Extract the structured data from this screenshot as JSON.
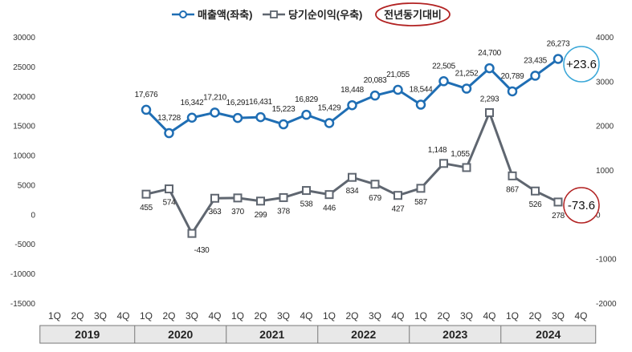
{
  "chart_data": {
    "type": "line",
    "categories": [
      "1Q",
      "2Q",
      "3Q",
      "4Q",
      "1Q",
      "2Q",
      "3Q",
      "4Q",
      "1Q",
      "2Q",
      "3Q",
      "4Q",
      "1Q",
      "2Q",
      "3Q",
      "4Q",
      "1Q",
      "2Q",
      "3Q",
      "4Q",
      "1Q",
      "2Q",
      "3Q",
      "4Q"
    ],
    "years": [
      "2019",
      "2020",
      "2021",
      "2022",
      "2023",
      "2024"
    ],
    "series": [
      {
        "name": "매출액(좌축)",
        "axis": "left",
        "color": "#1f6eb4",
        "values": [
          null,
          null,
          null,
          null,
          17676,
          13728,
          16342,
          17210,
          16291,
          16431,
          15223,
          16829,
          15429,
          18448,
          20083,
          21055,
          18544,
          22505,
          21252,
          24700,
          20789,
          23435,
          26273,
          null
        ],
        "labels": [
          "",
          "",
          "",
          "",
          "17,676",
          "13,728",
          "16,342",
          "17,210",
          "16,291",
          "16,431",
          "15,223",
          "16,829",
          "15,429",
          "18,448",
          "20,083",
          "21,055",
          "18,544",
          "22,505",
          "21,252",
          "24,700",
          "20,789",
          "23,435",
          "26,273",
          ""
        ]
      },
      {
        "name": "당기순이익(우축)",
        "axis": "right",
        "color": "#5f6670",
        "values": [
          null,
          null,
          null,
          null,
          455,
          574,
          -430,
          363,
          370,
          299,
          378,
          538,
          446,
          834,
          679,
          427,
          587,
          1148,
          1055,
          2293,
          867,
          526,
          278,
          null
        ],
        "labels": [
          "",
          "",
          "",
          "",
          "455",
          "574",
          "-430",
          "363",
          "370",
          "299",
          "378",
          "538",
          "446",
          "834",
          "679",
          "427",
          "587",
          "1,148",
          "1,055",
          "2,293",
          "867",
          "526",
          "278",
          ""
        ]
      }
    ],
    "left_axis": {
      "ylim": [
        -15000,
        30000
      ],
      "ticks": [
        "30000",
        "25000",
        "20000",
        "15000",
        "10000",
        "5000",
        "0",
        "-5000",
        "-10000",
        "-15000"
      ]
    },
    "right_axis": {
      "ylim": [
        -2000,
        4000
      ],
      "ticks": [
        "4000",
        "3000",
        "2000",
        "1000",
        "0",
        "-1000",
        "-2000"
      ]
    },
    "annotations": {
      "yoy_label": "전년동기대비",
      "sales_yoy": "+23.6",
      "profit_yoy": "-73.6"
    },
    "colors": {
      "sales": "#1f6eb4",
      "profit": "#5f6670",
      "sales_badge": "#3aa7d8",
      "profit_badge": "#b22222",
      "yoy_oval": "#b22222",
      "year_band": "#e8e8e8"
    },
    "legend_placement": "top-center",
    "grid": false
  }
}
